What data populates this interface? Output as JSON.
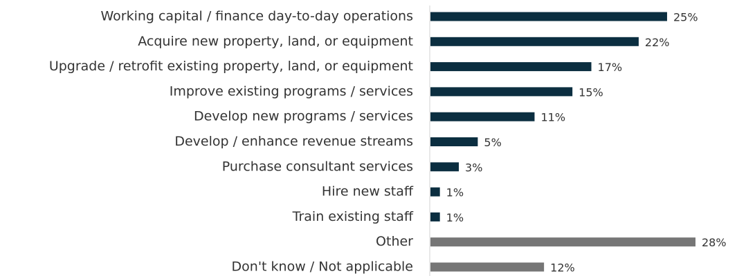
{
  "chart_data": {
    "type": "barh",
    "categories": [
      "Working capital / finance day-to-day operations",
      "Acquire new property, land, or equipment",
      "Upgrade / retrofit existing property, land, or equipment",
      "Improve existing programs / services",
      "Develop new programs / services",
      "Develop / enhance revenue streams",
      "Purchase consultant services",
      "Hire new staff",
      "Train existing staff",
      "Other",
      "Don't know / Not applicable"
    ],
    "values": [
      25,
      22,
      17,
      15,
      11,
      5,
      3,
      1,
      1,
      28,
      12
    ],
    "value_labels": [
      "25%",
      "22%",
      "17%",
      "15%",
      "11%",
      "5%",
      "3%",
      "1%",
      "1%",
      "28%",
      "12%"
    ],
    "colors": [
      "#0b2e40",
      "#0b2e40",
      "#0b2e40",
      "#0b2e40",
      "#0b2e40",
      "#0b2e40",
      "#0b2e40",
      "#0b2e40",
      "#0b2e40",
      "#767676",
      "#767676"
    ]
  }
}
